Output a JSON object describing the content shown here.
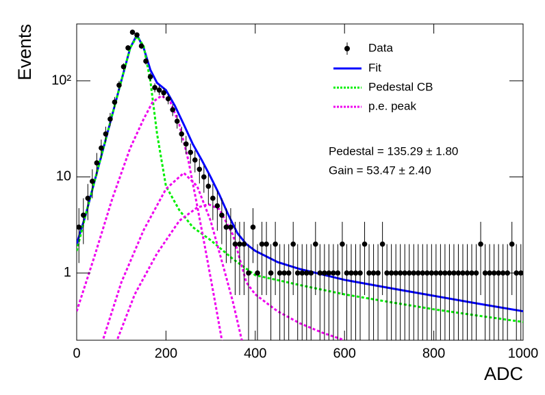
{
  "chart_data": {
    "type": "histogram-fit",
    "x_label": "ADC",
    "y_label": "Events",
    "log_y": true,
    "xlim": [
      0,
      1000
    ],
    "ylim": [
      0.2,
      390
    ],
    "xticks": [
      0,
      200,
      400,
      600,
      800,
      1000
    ],
    "yticks": [
      1,
      10,
      {
        "value": 100,
        "label": "10²"
      }
    ],
    "annotations": [
      "Pedestal = 135.29 ± 1.80",
      "Gain = 53.47 ± 2.40"
    ],
    "data": {
      "name": "Data",
      "color": "#000000",
      "x": [
        5,
        15,
        25,
        35,
        45,
        55,
        65,
        75,
        85,
        95,
        105,
        115,
        125,
        135,
        145,
        155,
        165,
        175,
        185,
        195,
        205,
        215,
        225,
        235,
        245,
        255,
        265,
        275,
        285,
        295,
        305,
        315,
        325,
        335,
        345,
        355,
        365,
        375,
        385,
        395,
        405,
        415,
        425,
        435,
        445,
        455,
        465,
        475,
        485,
        495,
        505,
        515,
        525,
        535,
        545,
        555,
        565,
        575,
        585,
        595,
        605,
        615,
        625,
        635,
        645,
        655,
        665,
        675,
        685,
        695,
        705,
        715,
        725,
        735,
        745,
        755,
        765,
        775,
        785,
        795,
        805,
        815,
        825,
        835,
        845,
        855,
        865,
        875,
        885,
        895,
        905,
        915,
        925,
        935,
        945,
        955,
        965,
        975,
        985,
        995
      ],
      "values": [
        3,
        4,
        6,
        9,
        14,
        20,
        28,
        40,
        60,
        90,
        140,
        220,
        320,
        300,
        230,
        160,
        110,
        85,
        80,
        75,
        65,
        50,
        38,
        28,
        22,
        18,
        15,
        12,
        10,
        8,
        6,
        5,
        4,
        3,
        3,
        2,
        2,
        2,
        1,
        3,
        1,
        2,
        2,
        1,
        2,
        1,
        1,
        1,
        2,
        1,
        1,
        1,
        1,
        2,
        1,
        1,
        1,
        1,
        1,
        2,
        1,
        1,
        1,
        1,
        2,
        1,
        1,
        1,
        2,
        1,
        1,
        1,
        1,
        1,
        1,
        1,
        1,
        1,
        1,
        1,
        1,
        1,
        1,
        1,
        1,
        1,
        1,
        1,
        1,
        1,
        2,
        1,
        1,
        1,
        1,
        1,
        1,
        2,
        1,
        1
      ],
      "errors": [
        1.73,
        2,
        2.45,
        3,
        3.74,
        4.47,
        5.29,
        6.32,
        7.75,
        9.49,
        11.83,
        14.83,
        17.89,
        17.32,
        15.17,
        12.65,
        10.49,
        9.22,
        8.94,
        8.66,
        8.06,
        7.07,
        6.16,
        5.29,
        4.69,
        4.24,
        3.87,
        3.46,
        3.16,
        2.83,
        2.45,
        2.24,
        2,
        1.73,
        1.73,
        1.41,
        1.41,
        1.41,
        1,
        1.73,
        1,
        1.41,
        1.41,
        1,
        1.41,
        1,
        1,
        1,
        1.41,
        1,
        1,
        1,
        1,
        1.41,
        1,
        1,
        1,
        1,
        1,
        1.41,
        1,
        1,
        1,
        1,
        1.41,
        1,
        1,
        1,
        1.41,
        1,
        1,
        1,
        1,
        1,
        1,
        1,
        1,
        1,
        1,
        1,
        1,
        1,
        1,
        1,
        1,
        1,
        1,
        1,
        1,
        1,
        1.41,
        1,
        1,
        1,
        1,
        1,
        1,
        1.41,
        1,
        1
      ]
    },
    "series": [
      {
        "name": "Fit",
        "color": "#0000ff",
        "dash": false,
        "curves": [
          {
            "x": [
              0,
              20,
              40,
              60,
              80,
              100,
              120,
              135,
              150,
              165,
              180,
              200,
              220,
              240,
              260,
              280,
              300,
              320,
              340,
              360,
              380,
              400,
              450,
              500,
              600,
              700,
              800,
              900,
              1000
            ],
            "values": [
              2,
              4,
              9,
              20,
              45,
              100,
              220,
              300,
              220,
              130,
              95,
              80,
              55,
              35,
              22,
              15,
              10,
              6.5,
              4,
              2.6,
              2,
              1.7,
              1.3,
              1.1,
              0.85,
              0.7,
              0.58,
              0.48,
              0.4
            ]
          }
        ]
      },
      {
        "name": "Pedestal CB",
        "color": "#00ee00",
        "dash": true,
        "curves": [
          {
            "x": [
              0,
              20,
              40,
              60,
              80,
              100,
              120,
              135,
              150,
              165,
              180,
              200,
              230,
              260,
              300,
              350,
              400,
              500,
              600,
              700,
              800,
              900,
              1000
            ],
            "values": [
              1.7,
              4,
              9,
              20,
              45,
              100,
              220,
              290,
              230,
              100,
              28,
              8,
              4.5,
              3,
              2.2,
              1.4,
              0.95,
              0.75,
              0.6,
              0.5,
              0.42,
              0.36,
              0.31
            ]
          }
        ]
      },
      {
        "name": "p.e. peak",
        "color": "#ee00ee",
        "dash": true,
        "curves": [
          {
            "x": [
              0,
              40,
              80,
              120,
              150,
              170,
              190,
              210,
              230,
              250,
              270,
              290,
              310,
              330
            ],
            "values": [
              0.4,
              1.5,
              6,
              20,
              40,
              60,
              70,
              60,
              35,
              15,
              5,
              1.6,
              0.5,
              0.15
            ]
          },
          {
            "x": [
              50,
              100,
              150,
              200,
              240,
              270,
              300,
              330,
              350,
              370
            ],
            "values": [
              0.15,
              0.8,
              2.8,
              7.5,
              11,
              8,
              3.5,
              1.1,
              0.5,
              0.2
            ]
          },
          {
            "x": [
              80,
              130,
              180,
              230,
              270,
              295,
              320,
              350,
              380,
              400,
              450,
              500,
              550,
              600
            ],
            "values": [
              0.15,
              0.6,
              1.6,
              3.5,
              4.8,
              5.2,
              4.6,
              2.5,
              0.8,
              0.6,
              0.4,
              0.3,
              0.24,
              0.2
            ]
          }
        ]
      }
    ]
  }
}
